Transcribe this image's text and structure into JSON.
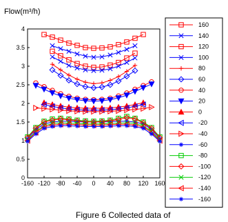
{
  "chart_data": {
    "type": "line",
    "ylabel": "Flow(m³/h)",
    "caption": "Figure 6 Collected data of",
    "xlim": [
      -160,
      160
    ],
    "ylim": [
      0,
      4
    ],
    "xticks": [
      -160,
      -120,
      -80,
      -40,
      0,
      40,
      80,
      120,
      160
    ],
    "yticks": [
      0,
      0.5,
      1,
      1.5,
      2,
      2.5,
      3,
      3.5,
      4
    ],
    "xtick_labels": [
      "-160",
      "-120",
      "-80",
      "-40",
      "0",
      "40",
      "80",
      "120",
      "160"
    ],
    "ytick_labels": [
      "0",
      "0.5",
      "1",
      "1.5",
      "2",
      "2.5",
      "3",
      "3.5",
      "4"
    ],
    "x": [
      -160,
      -140,
      -120,
      -100,
      -80,
      -60,
      -40,
      -20,
      0,
      20,
      40,
      60,
      80,
      100,
      120,
      140,
      160
    ],
    "series": [
      {
        "name": "160",
        "color": "#ff0000",
        "marker": "square",
        "x": [
          -120,
          -100,
          -80,
          -60,
          -40,
          -20,
          0,
          20,
          40,
          60,
          80,
          100,
          120
        ],
        "values": [
          3.85,
          3.78,
          3.7,
          3.62,
          3.56,
          3.5,
          3.48,
          3.49,
          3.52,
          3.58,
          3.65,
          3.75,
          3.85
        ]
      },
      {
        "name": "140",
        "color": "#0000ff",
        "marker": "x",
        "x": [
          -100,
          -80,
          -60,
          -40,
          -20,
          0,
          20,
          40,
          60,
          80,
          100
        ],
        "values": [
          3.55,
          3.47,
          3.4,
          3.33,
          3.27,
          3.24,
          3.25,
          3.3,
          3.37,
          3.45,
          3.55
        ]
      },
      {
        "name": "120",
        "color": "#ff0000",
        "marker": "square",
        "x": [
          -100,
          -80,
          -60,
          -40,
          -20,
          0,
          20,
          40,
          60,
          80,
          100
        ],
        "values": [
          3.4,
          3.28,
          3.17,
          3.07,
          3.0,
          2.97,
          2.98,
          3.03,
          3.1,
          3.22,
          3.35
        ]
      },
      {
        "name": "100",
        "color": "#0000ff",
        "marker": "x",
        "x": [
          -100,
          -80,
          -60,
          -40,
          -20,
          0,
          20,
          40,
          60,
          80,
          100
        ],
        "values": [
          3.25,
          3.13,
          3.02,
          2.95,
          2.9,
          2.88,
          2.89,
          2.93,
          3.0,
          3.1,
          3.22
        ]
      },
      {
        "name": "80",
        "color": "#ff0000",
        "marker": "plus",
        "x": [
          -100,
          -80,
          -60,
          -40,
          -20,
          0,
          20,
          40,
          60,
          80,
          100
        ],
        "values": [
          3.05,
          2.9,
          2.76,
          2.65,
          2.57,
          2.53,
          2.55,
          2.62,
          2.72,
          2.86,
          3.02
        ]
      },
      {
        "name": "60",
        "color": "#0000ff",
        "marker": "diamond",
        "x": [
          -100,
          -80,
          -60,
          -40,
          -20,
          0,
          20,
          40,
          60,
          80,
          100
        ],
        "values": [
          2.9,
          2.75,
          2.62,
          2.52,
          2.45,
          2.42,
          2.44,
          2.5,
          2.6,
          2.73,
          2.88
        ]
      },
      {
        "name": "40",
        "color": "#ff0000",
        "marker": "circle",
        "x": [
          -140,
          -120,
          -100,
          -80,
          -60,
          -40,
          -20,
          0,
          20,
          40,
          60,
          80,
          100,
          120,
          140
        ],
        "values": [
          2.55,
          2.45,
          2.35,
          2.26,
          2.19,
          2.14,
          2.11,
          2.1,
          2.11,
          2.14,
          2.2,
          2.28,
          2.38,
          2.48,
          2.58
        ]
      },
      {
        "name": "20",
        "color": "#0000ff",
        "marker": "triangle-down",
        "x": [
          -140,
          -120,
          -100,
          -80,
          -60,
          -40,
          -20,
          0,
          20,
          40,
          60,
          80,
          100,
          120,
          140
        ],
        "values": [
          2.48,
          2.38,
          2.28,
          2.2,
          2.14,
          2.1,
          2.07,
          2.06,
          2.07,
          2.1,
          2.15,
          2.22,
          2.32,
          2.42,
          2.52
        ]
      },
      {
        "name": "0",
        "color": "#ff0000",
        "marker": "triangle-up",
        "x": [
          -120,
          -100,
          -80,
          -60,
          -40,
          -20,
          0,
          20,
          40,
          60,
          80,
          100,
          120
        ],
        "values": [
          2.02,
          1.97,
          1.93,
          1.9,
          1.88,
          1.87,
          1.87,
          1.87,
          1.88,
          1.9,
          1.93,
          1.97,
          2.02
        ]
      },
      {
        "name": "-20",
        "color": "#0000ff",
        "marker": "triangle-left",
        "x": [
          -120,
          -100,
          -80,
          -60,
          -40,
          -20,
          0,
          20,
          40,
          60,
          80,
          100,
          120
        ],
        "values": [
          1.97,
          1.92,
          1.88,
          1.85,
          1.83,
          1.82,
          1.82,
          1.82,
          1.83,
          1.85,
          1.88,
          1.92,
          1.97
        ]
      },
      {
        "name": "-40",
        "color": "#ff0000",
        "marker": "triangle-right",
        "x": [
          -140,
          -120,
          -100,
          -80,
          -60,
          -40,
          -20,
          0,
          20,
          40,
          60,
          80,
          100,
          120,
          140
        ],
        "values": [
          1.88,
          1.86,
          1.84,
          1.82,
          1.8,
          1.79,
          1.78,
          1.78,
          1.78,
          1.79,
          1.8,
          1.82,
          1.84,
          1.86,
          1.9
        ]
      },
      {
        "name": "-60",
        "color": "#0000ff",
        "marker": "star",
        "x": [
          -160,
          -140,
          -120,
          -100,
          -80,
          -60,
          -40,
          -20,
          0,
          20,
          40,
          60,
          80,
          100,
          120,
          140,
          160
        ],
        "values": [
          1.05,
          1.3,
          1.45,
          1.5,
          1.52,
          1.52,
          1.51,
          1.5,
          1.5,
          1.5,
          1.51,
          1.52,
          1.52,
          1.5,
          1.45,
          1.3,
          1.05
        ]
      },
      {
        "name": "-80",
        "color": "#00cc00",
        "marker": "square",
        "x": [
          -160,
          -140,
          -120,
          -100,
          -80,
          -60,
          -40,
          -20,
          0,
          20,
          40,
          60,
          80,
          100,
          120,
          140,
          160
        ],
        "values": [
          1.1,
          1.35,
          1.52,
          1.58,
          1.6,
          1.58,
          1.55,
          1.53,
          1.52,
          1.53,
          1.55,
          1.6,
          1.65,
          1.6,
          1.5,
          1.35,
          1.1
        ]
      },
      {
        "name": "-100",
        "color": "#ff0000",
        "marker": "diamond",
        "x": [
          -160,
          -140,
          -120,
          -100,
          -80,
          -60,
          -40,
          -20,
          0,
          20,
          40,
          60,
          80,
          100,
          120,
          140,
          160
        ],
        "values": [
          1.08,
          1.33,
          1.5,
          1.55,
          1.58,
          1.56,
          1.53,
          1.51,
          1.5,
          1.51,
          1.53,
          1.57,
          1.62,
          1.58,
          1.48,
          1.33,
          1.08
        ]
      },
      {
        "name": "-120",
        "color": "#00cc00",
        "marker": "x",
        "x": [
          -160,
          -140,
          -120,
          -100,
          -80,
          -60,
          -40,
          -20,
          0,
          20,
          40,
          60,
          80,
          100,
          120,
          140,
          160
        ],
        "values": [
          1.02,
          1.25,
          1.4,
          1.46,
          1.48,
          1.47,
          1.46,
          1.45,
          1.45,
          1.45,
          1.46,
          1.47,
          1.48,
          1.46,
          1.4,
          1.25,
          1.02
        ]
      },
      {
        "name": "-140",
        "color": "#ff0000",
        "marker": "triangle-left",
        "x": [
          -160,
          -140,
          -120,
          -100,
          -80,
          -60,
          -40,
          -20,
          0,
          20,
          40,
          60,
          80,
          100,
          120,
          140,
          160
        ],
        "values": [
          1.0,
          1.22,
          1.37,
          1.42,
          1.44,
          1.44,
          1.43,
          1.42,
          1.42,
          1.42,
          1.43,
          1.44,
          1.44,
          1.42,
          1.37,
          1.22,
          1.0
        ]
      },
      {
        "name": "-160",
        "color": "#0000ff",
        "marker": "star",
        "x": [
          -160,
          -140,
          -120,
          -100,
          -80,
          -60,
          -40,
          -20,
          0,
          20,
          40,
          60,
          80,
          100,
          120,
          140,
          160
        ],
        "values": [
          0.98,
          1.18,
          1.33,
          1.38,
          1.4,
          1.4,
          1.39,
          1.38,
          1.38,
          1.38,
          1.39,
          1.4,
          1.4,
          1.38,
          1.33,
          1.18,
          0.98
        ]
      }
    ],
    "legend_position": "right",
    "grid": false
  }
}
